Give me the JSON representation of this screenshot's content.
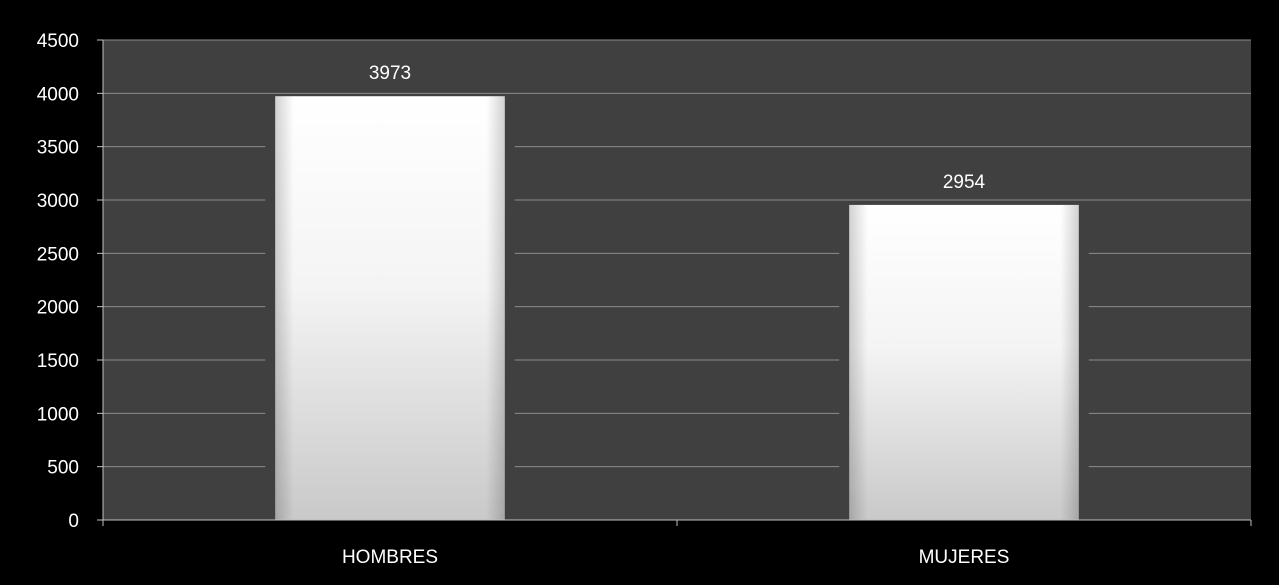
{
  "colors": {
    "page_background": "#000000",
    "plot_background": "#404040",
    "gridline": "#8c8c8c",
    "axis": "#bfbfbf",
    "text": "#ffffff",
    "bar_fill": "#ffffff"
  },
  "chart_data": {
    "type": "bar",
    "title": "",
    "xlabel": "",
    "ylabel": "",
    "categories": [
      "HOMBRES",
      "MUJERES"
    ],
    "values": [
      3973,
      2954
    ],
    "data_labels": [
      "3973",
      "2954"
    ],
    "ylim": [
      0,
      4500
    ],
    "y_ticks": [
      0,
      500,
      1000,
      1500,
      2000,
      2500,
      3000,
      3500,
      4000,
      4500
    ],
    "y_tick_labels": [
      "0",
      "500",
      "1000",
      "1500",
      "2000",
      "2500",
      "3000",
      "3500",
      "4000",
      "4500"
    ],
    "grid": true,
    "legend": "none"
  }
}
